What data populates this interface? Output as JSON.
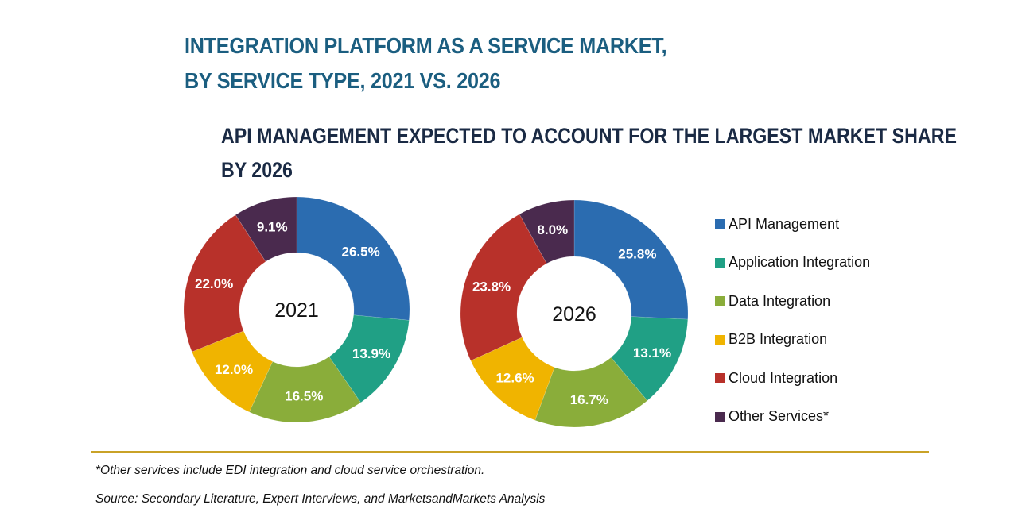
{
  "header": {
    "title_line1": "INTEGRATION PLATFORM AS A SERVICE MARKET,",
    "title_line2": "BY SERVICE TYPE, 2021 VS. 2026",
    "subtitle_line1": "API MANAGEMENT EXPECTED TO ACCOUNT FOR THE LARGEST MARKET SHARE",
    "subtitle_line2": "BY 2026"
  },
  "chart_data": [
    {
      "type": "pie",
      "variant": "donut",
      "title": "2021",
      "categories": [
        "API Management",
        "Application Integration",
        "Data Integration",
        "B2B Integration",
        "Cloud Integration",
        "Other Services*"
      ],
      "values": [
        26.5,
        13.9,
        16.5,
        12.0,
        22.0,
        9.1
      ],
      "labels": [
        "26.5%",
        "13.9%",
        "16.5%",
        "12.0%",
        "22.0%",
        "9.1%"
      ],
      "unit": "%"
    },
    {
      "type": "pie",
      "variant": "donut",
      "title": "2026",
      "categories": [
        "API Management",
        "Application Integration",
        "Data Integration",
        "B2B Integration",
        "Cloud Integration",
        "Other Services*"
      ],
      "values": [
        25.8,
        13.1,
        16.7,
        12.6,
        23.8,
        8.0
      ],
      "labels": [
        "25.8%",
        "13.1%",
        "16.7%",
        "12.6%",
        "23.8%",
        "8.0%"
      ],
      "unit": "%"
    }
  ],
  "legend": {
    "placement": "right",
    "items": [
      {
        "label": "API Management",
        "color": "#2b6cb0"
      },
      {
        "label": "Application Integration",
        "color": "#20a085"
      },
      {
        "label": "Data Integration",
        "color": "#8aad3a"
      },
      {
        "label": "B2B Integration",
        "color": "#f0b400"
      },
      {
        "label": "Cloud Integration",
        "color": "#b8312a"
      },
      {
        "label": "Other Services*",
        "color": "#4a2a4e"
      }
    ]
  },
  "footer": {
    "note": "*Other services include EDI integration and cloud service orchestration.",
    "source": "Source: Secondary Literature, Expert Interviews, and MarketsandMarkets Analysis"
  }
}
